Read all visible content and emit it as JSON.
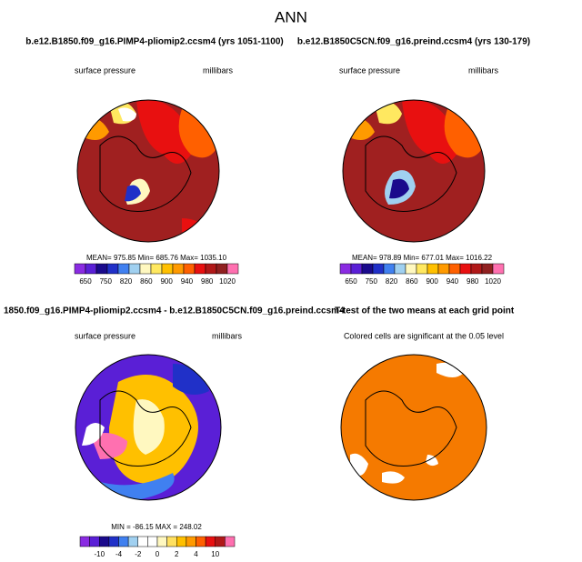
{
  "title": "ANN",
  "panels": [
    {
      "title": "b.e12.B1850.f09_g16.PIMP4-pliomip2.ccsm4 (yrs 1051-1100)",
      "left_label": "surface pressure",
      "right_label": "millibars",
      "stats": "MEAN= 975.85   Min= 685.76   Max= 1035.10",
      "colorbar": {
        "colors": [
          "#8a2be2",
          "#5a1fd6",
          "#1a0a8c",
          "#2030c8",
          "#4080f0",
          "#a0d0f0",
          "#fff8c0",
          "#ffe860",
          "#ffc000",
          "#ff9a00",
          "#ff6000",
          "#e81010",
          "#b01818",
          "#902020",
          "#ff70b0"
        ],
        "labels": [
          650,
          750,
          820,
          860,
          900,
          940,
          980,
          1020
        ]
      }
    },
    {
      "title": "b.e12.B1850C5CN.f09_g16.preind.ccsm4 (yrs 130-179)",
      "left_label": "surface pressure",
      "right_label": "millibars",
      "stats": "MEAN= 978.89   Min= 677.01   Max= 1016.22",
      "colorbar": {
        "colors": [
          "#8a2be2",
          "#5a1fd6",
          "#1a0a8c",
          "#2030c8",
          "#4080f0",
          "#a0d0f0",
          "#fff8c0",
          "#ffe860",
          "#ffc000",
          "#ff9a00",
          "#ff6000",
          "#e81010",
          "#b01818",
          "#902020",
          "#ff70b0"
        ],
        "labels": [
          650,
          750,
          820,
          860,
          900,
          940,
          980,
          1020
        ]
      }
    },
    {
      "title": "1850.f09_g16.PIMP4-pliomip2.ccsm4 - b.e12.B1850C5CN.f09_g16.preind.ccsm4",
      "left_label": "surface pressure",
      "right_label": "millibars",
      "stats": "MIN = -86.15  MAX = 248.02",
      "colorbar": {
        "colors": [
          "#8a2be2",
          "#5a1fd6",
          "#1a0a8c",
          "#2030c8",
          "#4080f0",
          "#a0d0f0",
          "#ffffff",
          "#ffffff",
          "#fff8c0",
          "#ffe060",
          "#ffc000",
          "#ff9a00",
          "#ff6000",
          "#e81010",
          "#b01818",
          "#ff70b0"
        ],
        "labels": [
          -10,
          -4,
          -2,
          0,
          2,
          4,
          10
        ]
      }
    },
    {
      "title": "T-test of the two means at each grid point",
      "subtitle": "Colored cells are significant at the 0.05 level"
    }
  ]
}
